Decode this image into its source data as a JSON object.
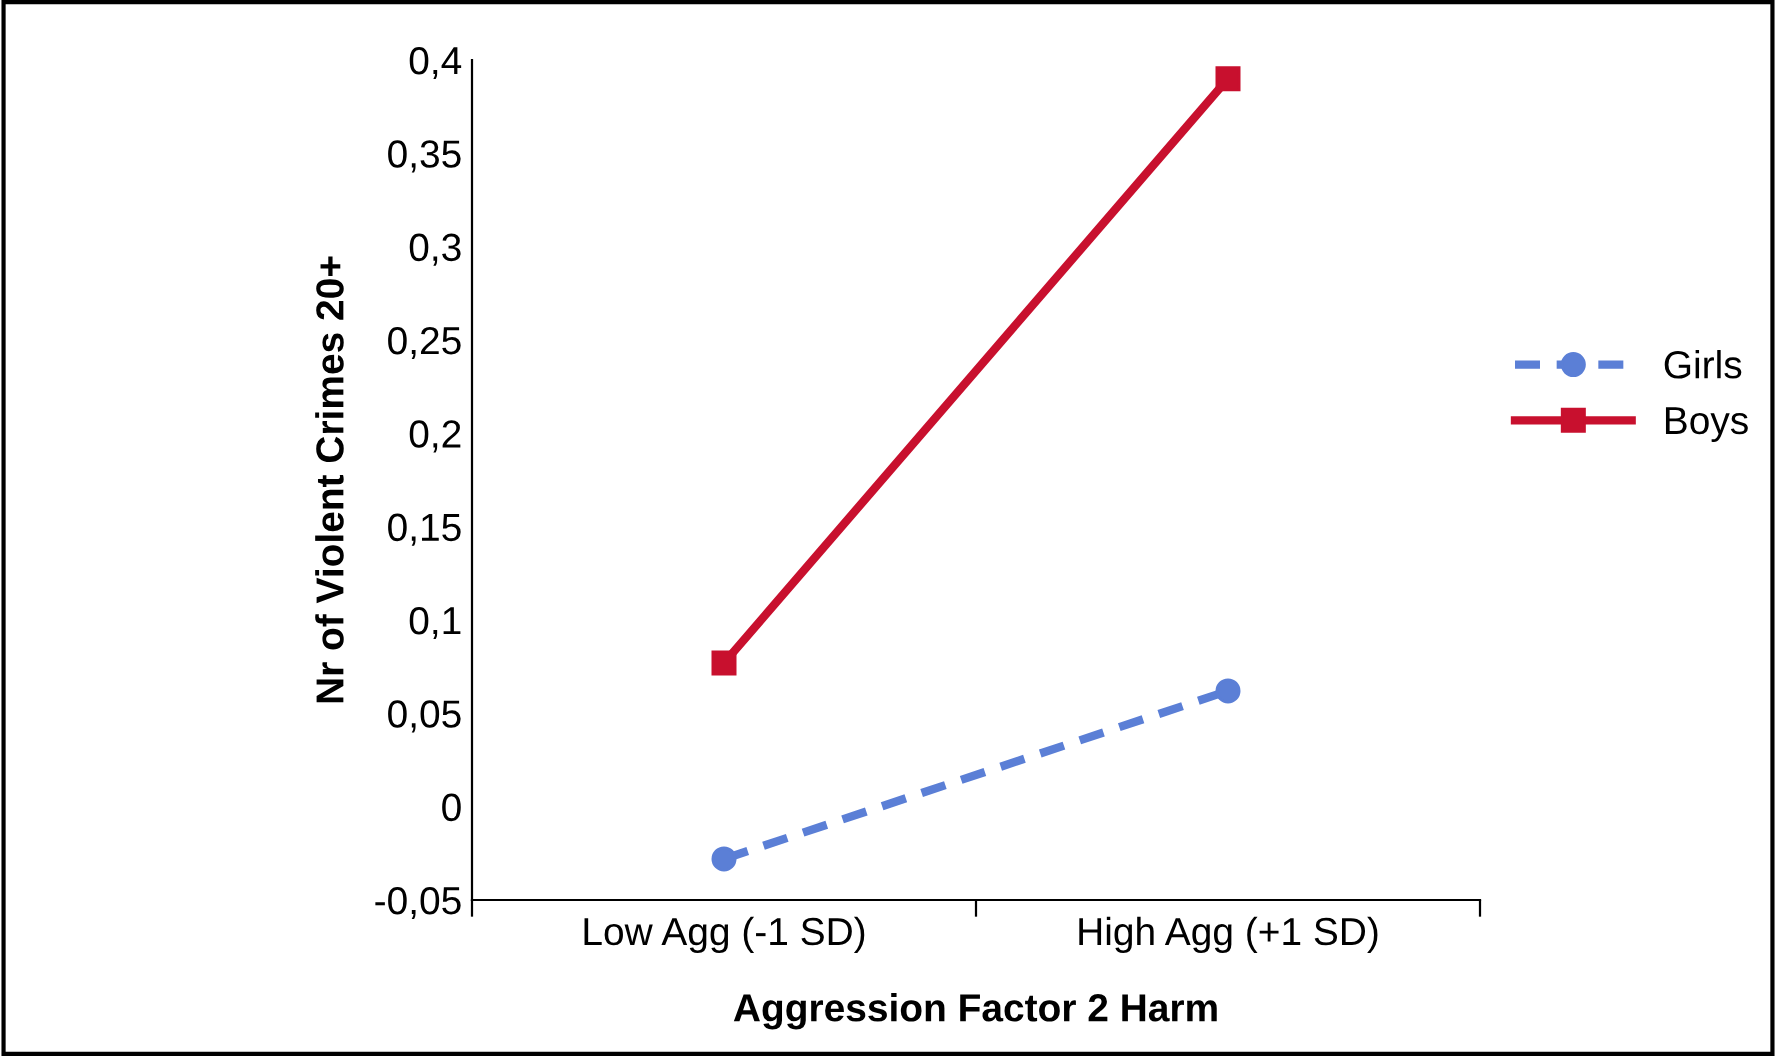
{
  "chart_data": {
    "type": "line",
    "xlabel": "Aggression Factor 2 Harm",
    "ylabel": "Nr of Violent Crimes 20+",
    "categories": [
      "Low Agg (-1 SD)",
      "High Agg (+1 SD)"
    ],
    "series": [
      {
        "name": "Girls",
        "color": "#5b7fd6",
        "values": [
          -0.028,
          0.062
        ],
        "marker": "circle",
        "line_style": "dashed"
      },
      {
        "name": "Boys",
        "color": "#c8102e",
        "values": [
          0.077,
          0.39
        ],
        "marker": "square",
        "line_style": "solid"
      }
    ],
    "ylim": [
      -0.05,
      0.4
    ],
    "yticks": [
      {
        "value": -0.05,
        "label": "-0,05"
      },
      {
        "value": 0,
        "label": "0"
      },
      {
        "value": 0.05,
        "label": "0,05"
      },
      {
        "value": 0.1,
        "label": "0,1"
      },
      {
        "value": 0.15,
        "label": "0,15"
      },
      {
        "value": 0.2,
        "label": "0,2"
      },
      {
        "value": 0.25,
        "label": "0,25"
      },
      {
        "value": 0.3,
        "label": "0,3"
      },
      {
        "value": 0.35,
        "label": "0,35"
      },
      {
        "value": 0.4,
        "label": "0,4"
      }
    ],
    "grid": false,
    "legend": "right"
  }
}
